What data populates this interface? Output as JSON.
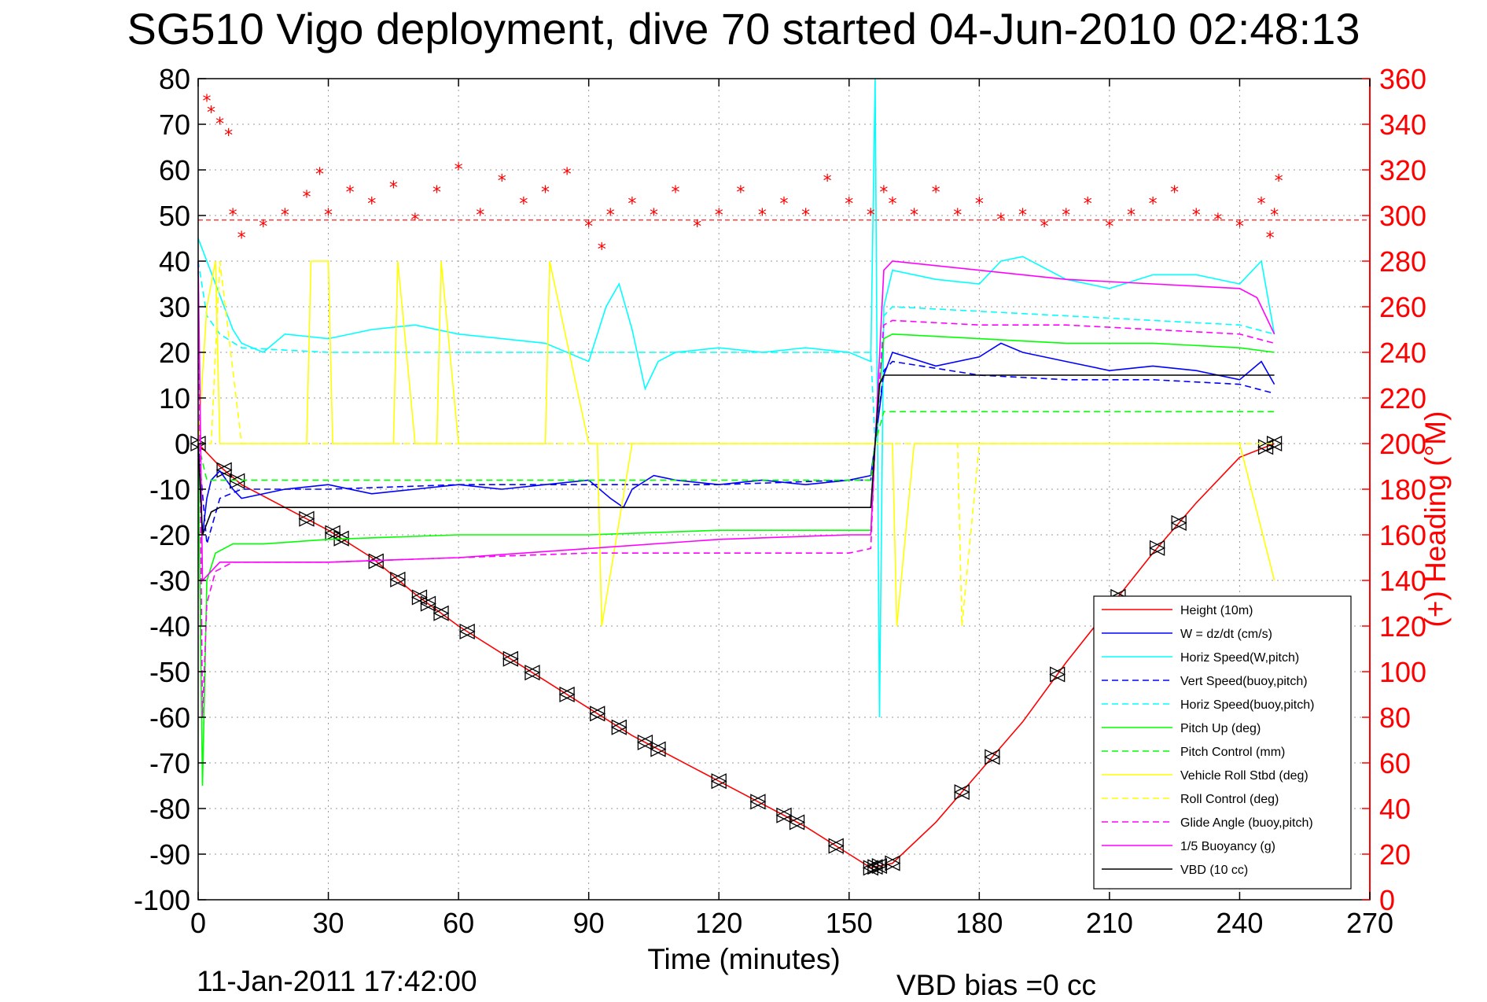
{
  "chart_data": {
    "type": "line",
    "title": "SG510 Vigo deployment, dive 70 started 04-Jun-2010 02:48:13",
    "xlabel": "Time (minutes)",
    "ylabel": "",
    "ylabel_right": "(+) Heading (°M)",
    "xlim": [
      0,
      270
    ],
    "ylim": [
      -100,
      80
    ],
    "ylim_right": [
      0,
      360
    ],
    "x_ticks": [
      "0",
      "30",
      "60",
      "90",
      "120",
      "150",
      "180",
      "210",
      "240",
      "270"
    ],
    "y_ticks": [
      "80",
      "70",
      "60",
      "50",
      "40",
      "30",
      "20",
      "10",
      "0",
      "-10",
      "-20",
      "-30",
      "-40",
      "-50",
      "-60",
      "-70",
      "-80",
      "-90",
      "-100"
    ],
    "y_ticks_right": [
      "360",
      "340",
      "320",
      "300",
      "280",
      "260",
      "240",
      "220",
      "200",
      "180",
      "160",
      "140",
      "120",
      "100",
      "80",
      "60",
      "40",
      "20",
      "0"
    ],
    "grid": true,
    "legend_position": "bottom-right",
    "footer_left": "11-Jan-2011 17:42:00",
    "footer_right": "VBD bias =0 cc",
    "heading_reference_right": 298,
    "series": [
      {
        "name": "Height (10m)",
        "color": "#ff0000",
        "dash": "solid",
        "axis": "left",
        "x": [
          0,
          5,
          10,
          20,
          30,
          40,
          50,
          60,
          70,
          80,
          90,
          100,
          110,
          120,
          130,
          140,
          150,
          155,
          160,
          170,
          180,
          190,
          200,
          210,
          220,
          230,
          240,
          248
        ],
        "y": [
          0,
          -5,
          -9,
          -14,
          -19,
          -25,
          -33,
          -40,
          -46,
          -52,
          -58,
          -64,
          -69,
          -74,
          -79,
          -84,
          -90,
          -93,
          -92,
          -83,
          -72,
          -61,
          -48,
          -36,
          -24,
          -13,
          -3,
          0
        ],
        "markers": [
          0,
          6,
          9,
          25,
          31,
          33,
          41,
          46,
          51,
          53,
          56,
          62,
          72,
          77,
          85,
          92,
          97,
          103,
          106,
          120,
          129,
          135,
          138,
          147,
          155,
          156,
          157,
          160,
          176,
          183,
          198,
          212,
          221,
          226,
          246,
          248
        ]
      },
      {
        "name": "W = dz/dt (cm/s)",
        "color": "#0000ff",
        "dash": "solid",
        "axis": "left",
        "x": [
          0,
          1,
          2,
          3,
          5,
          8,
          10,
          20,
          30,
          40,
          50,
          60,
          70,
          80,
          90,
          95,
          98,
          100,
          105,
          110,
          120,
          130,
          140,
          150,
          155,
          156,
          158,
          160,
          170,
          180,
          185,
          190,
          200,
          210,
          220,
          230,
          240,
          245,
          248
        ],
        "y": [
          0,
          -20,
          -12,
          -8,
          -6,
          -10,
          -12,
          -10,
          -9,
          -11,
          -10,
          -9,
          -10,
          -9,
          -8,
          -12,
          -14,
          -10,
          -7,
          -8,
          -9,
          -8,
          -9,
          -8,
          -7,
          0,
          15,
          20,
          17,
          19,
          22,
          20,
          18,
          16,
          17,
          16,
          14,
          18,
          13
        ]
      },
      {
        "name": "Horiz Speed(W,pitch)",
        "color": "#00ffff",
        "dash": "solid",
        "axis": "left",
        "x": [
          0,
          2,
          4,
          6,
          8,
          10,
          15,
          20,
          30,
          40,
          50,
          60,
          70,
          80,
          90,
          94,
          97,
          100,
          103,
          106,
          110,
          120,
          130,
          140,
          150,
          155,
          156,
          157,
          158,
          160,
          170,
          180,
          185,
          190,
          200,
          210,
          220,
          230,
          240,
          245,
          248
        ],
        "y": [
          45,
          40,
          35,
          30,
          25,
          22,
          20,
          24,
          23,
          25,
          26,
          24,
          23,
          22,
          18,
          30,
          35,
          25,
          12,
          18,
          20,
          21,
          20,
          21,
          20,
          18,
          80,
          -60,
          30,
          38,
          36,
          35,
          40,
          41,
          36,
          34,
          37,
          37,
          35,
          40,
          24
        ]
      },
      {
        "name": "Vert Speed(buoy,pitch)",
        "color": "#0000ff",
        "dash": "dash",
        "axis": "left",
        "x": [
          0,
          2,
          5,
          10,
          30,
          60,
          90,
          120,
          150,
          155,
          156,
          158,
          160,
          180,
          200,
          220,
          240,
          248
        ],
        "y": [
          0,
          -22,
          -12,
          -10,
          -10,
          -9,
          -9,
          -9,
          -8,
          -8,
          0,
          16,
          18,
          15,
          14,
          14,
          13,
          11
        ]
      },
      {
        "name": "Horiz Speed(buoy,pitch)",
        "color": "#00ffff",
        "dash": "dash",
        "axis": "left",
        "x": [
          0,
          2,
          5,
          10,
          30,
          60,
          90,
          120,
          150,
          155,
          156,
          158,
          160,
          180,
          200,
          220,
          240,
          248
        ],
        "y": [
          40,
          28,
          24,
          21,
          20,
          20,
          20,
          20,
          20,
          20,
          0,
          28,
          30,
          29,
          28,
          27,
          26,
          24
        ]
      },
      {
        "name": "Pitch Up (deg)",
        "color": "#00ff00",
        "dash": "solid",
        "axis": "left",
        "x": [
          0,
          1,
          2,
          4,
          8,
          15,
          30,
          60,
          90,
          120,
          150,
          155,
          156,
          158,
          160,
          180,
          200,
          220,
          240,
          248
        ],
        "y": [
          0,
          -75,
          -30,
          -24,
          -22,
          -22,
          -21,
          -20,
          -20,
          -19,
          -19,
          -19,
          0,
          23,
          24,
          23,
          22,
          22,
          21,
          20
        ]
      },
      {
        "name": "Pitch Control (mm)",
        "color": "#00ff00",
        "dash": "dash",
        "axis": "left",
        "x": [
          0,
          2,
          5,
          30,
          60,
          90,
          120,
          150,
          155,
          156,
          158,
          160,
          180,
          200,
          220,
          240,
          248
        ],
        "y": [
          0,
          -8,
          -8,
          -8,
          -8,
          -8,
          -8,
          -8,
          -8,
          0,
          7,
          7,
          7,
          7,
          7,
          7,
          7
        ]
      },
      {
        "name": "Vehicle Roll Stbd (deg)",
        "color": "#ffff00",
        "dash": "solid",
        "axis": "left",
        "x": [
          0,
          2,
          4,
          5,
          6,
          10,
          20,
          25,
          26,
          30,
          31,
          40,
          45,
          46,
          50,
          55,
          56,
          60,
          61,
          70,
          80,
          81,
          90,
          92,
          93,
          100,
          110,
          120,
          130,
          140,
          150,
          155,
          160,
          161,
          165,
          170,
          180,
          190,
          200,
          210,
          220,
          230,
          240,
          248
        ],
        "y": [
          0,
          30,
          40,
          0,
          0,
          0,
          0,
          0,
          40,
          40,
          0,
          0,
          0,
          40,
          0,
          0,
          40,
          0,
          0,
          0,
          0,
          40,
          0,
          0,
          -40,
          0,
          0,
          0,
          0,
          0,
          0,
          0,
          0,
          -40,
          0,
          0,
          0,
          0,
          0,
          0,
          0,
          0,
          0,
          -30
        ]
      },
      {
        "name": "Roll Control (deg)",
        "color": "#ffff00",
        "dash": "dash",
        "axis": "left",
        "x": [
          0,
          3,
          5,
          10,
          30,
          60,
          90,
          120,
          150,
          155,
          160,
          175,
          176,
          180,
          200,
          210,
          220,
          230,
          240,
          248
        ],
        "y": [
          0,
          0,
          40,
          0,
          0,
          0,
          0,
          0,
          0,
          0,
          0,
          0,
          -40,
          0,
          0,
          0,
          0,
          0,
          0,
          0
        ]
      },
      {
        "name": "Glide Angle (buoy,pitch)",
        "color": "#ff00ff",
        "dash": "dash",
        "axis": "left",
        "x": [
          0,
          1,
          2,
          4,
          8,
          20,
          30,
          60,
          90,
          120,
          150,
          155,
          156,
          158,
          160,
          180,
          200,
          220,
          240,
          248
        ],
        "y": [
          40,
          -60,
          -35,
          -28,
          -26,
          -26,
          -26,
          -25,
          -24,
          -24,
          -24,
          -23,
          0,
          26,
          27,
          26,
          26,
          25,
          24,
          22
        ]
      },
      {
        "name": "1/5 Buoyancy (g)",
        "color": "#ff00ff",
        "dash": "solid",
        "axis": "left",
        "x": [
          0,
          1,
          3,
          5,
          10,
          30,
          60,
          90,
          120,
          150,
          155,
          156,
          158,
          160,
          180,
          200,
          220,
          240,
          244,
          248
        ],
        "y": [
          40,
          -30,
          -28,
          -26,
          -26,
          -26,
          -25,
          -23,
          -21,
          -20,
          -20,
          0,
          38,
          40,
          38,
          36,
          35,
          34,
          32,
          24
        ]
      },
      {
        "name": "VBD (10 cc)",
        "color": "#000000",
        "dash": "solid",
        "axis": "left",
        "x": [
          0,
          1,
          3,
          5,
          30,
          60,
          90,
          120,
          150,
          155,
          156,
          157,
          158,
          160,
          180,
          200,
          220,
          240,
          248
        ],
        "y": [
          0,
          -20,
          -15,
          -14,
          -14,
          -14,
          -14,
          -14,
          -14,
          -14,
          0,
          13,
          15,
          15,
          15,
          15,
          15,
          15,
          15
        ]
      },
      {
        "name": "",
        "color": "#ff0000",
        "dash": "none",
        "axis": "right",
        "marker": "*",
        "x": [
          2,
          3,
          5,
          7,
          8,
          10,
          15,
          20,
          25,
          28,
          30,
          35,
          40,
          45,
          50,
          55,
          60,
          65,
          70,
          75,
          80,
          85,
          90,
          93,
          95,
          100,
          105,
          110,
          115,
          120,
          125,
          130,
          135,
          140,
          145,
          150,
          155,
          158,
          160,
          165,
          170,
          175,
          180,
          185,
          190,
          195,
          200,
          205,
          210,
          215,
          220,
          225,
          230,
          235,
          240,
          245,
          247,
          248,
          249
        ],
        "y": [
          350,
          345,
          340,
          335,
          300,
          290,
          295,
          300,
          308,
          318,
          300,
          310,
          305,
          312,
          298,
          310,
          320,
          300,
          315,
          305,
          310,
          318,
          295,
          285,
          300,
          305,
          300,
          310,
          295,
          300,
          310,
          300,
          305,
          300,
          315,
          305,
          300,
          310,
          305,
          300,
          310,
          300,
          305,
          298,
          300,
          295,
          300,
          305,
          295,
          300,
          305,
          310,
          300,
          298,
          295,
          305,
          290,
          300,
          315
        ]
      }
    ]
  }
}
